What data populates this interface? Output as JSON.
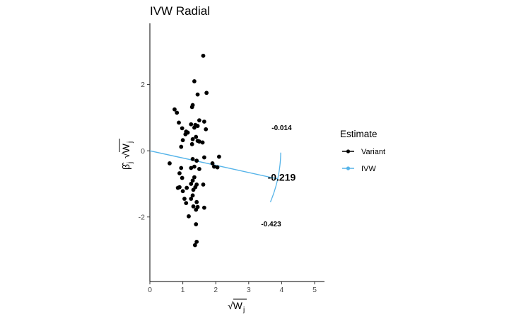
{
  "chart_data": {
    "type": "scatter",
    "title": "IVW Radial",
    "xlabel": "√Wj",
    "ylabel": "β̂j √Wj",
    "xlim": [
      0,
      5.3
    ],
    "ylim": [
      -3.95,
      3.85
    ],
    "x_ticks": [
      0,
      1,
      2,
      3,
      4,
      5
    ],
    "y_ticks": [
      -2,
      0,
      2
    ],
    "grid": false,
    "legend": {
      "title": "Estimate",
      "position": "right",
      "entries": [
        {
          "label": "Variant",
          "color": "#000000"
        },
        {
          "label": "IVW",
          "color": "#56B4E9"
        }
      ]
    },
    "series": [
      {
        "name": "Variant",
        "color": "#000000",
        "points": [
          [
            1.62,
            2.87
          ],
          [
            1.35,
            2.1
          ],
          [
            1.72,
            1.75
          ],
          [
            1.45,
            1.7
          ],
          [
            1.3,
            1.38
          ],
          [
            1.28,
            1.32
          ],
          [
            0.75,
            1.25
          ],
          [
            0.82,
            1.15
          ],
          [
            1.5,
            0.92
          ],
          [
            1.65,
            0.88
          ],
          [
            0.88,
            0.85
          ],
          [
            1.25,
            0.8
          ],
          [
            1.38,
            0.78
          ],
          [
            1.45,
            0.75
          ],
          [
            1.35,
            0.7
          ],
          [
            1.7,
            0.65
          ],
          [
            0.98,
            0.68
          ],
          [
            1.1,
            0.58
          ],
          [
            1.15,
            0.55
          ],
          [
            1.08,
            0.5
          ],
          [
            1.4,
            0.42
          ],
          [
            1.3,
            0.35
          ],
          [
            1.45,
            0.3
          ],
          [
            1.5,
            0.28
          ],
          [
            1.0,
            0.32
          ],
          [
            1.6,
            0.25
          ],
          [
            1.28,
            0.2
          ],
          [
            0.95,
            0.12
          ],
          [
            2.1,
            -0.18
          ],
          [
            1.3,
            -0.25
          ],
          [
            1.65,
            -0.2
          ],
          [
            1.42,
            -0.3
          ],
          [
            1.9,
            -0.38
          ],
          [
            0.6,
            -0.38
          ],
          [
            1.95,
            -0.48
          ],
          [
            2.05,
            -0.5
          ],
          [
            1.5,
            -0.55
          ],
          [
            1.35,
            -0.48
          ],
          [
            1.25,
            -0.52
          ],
          [
            0.95,
            -0.52
          ],
          [
            0.9,
            -0.68
          ],
          [
            0.98,
            -0.82
          ],
          [
            1.35,
            -0.8
          ],
          [
            1.3,
            -0.9
          ],
          [
            1.25,
            -1.0
          ],
          [
            1.42,
            -1.02
          ],
          [
            1.62,
            -1.02
          ],
          [
            1.38,
            -1.1
          ],
          [
            0.9,
            -1.1
          ],
          [
            0.85,
            -1.12
          ],
          [
            1.12,
            -1.12
          ],
          [
            1.32,
            -1.18
          ],
          [
            1.0,
            -1.22
          ],
          [
            1.3,
            -1.35
          ],
          [
            1.25,
            -1.45
          ],
          [
            1.05,
            -1.45
          ],
          [
            1.1,
            -1.58
          ],
          [
            1.42,
            -1.55
          ],
          [
            1.32,
            -1.68
          ],
          [
            1.45,
            -1.7
          ],
          [
            1.65,
            -1.72
          ],
          [
            1.4,
            -1.78
          ],
          [
            1.18,
            -1.98
          ],
          [
            1.4,
            -2.22
          ],
          [
            1.42,
            -2.75
          ],
          [
            1.37,
            -2.85
          ]
        ]
      },
      {
        "name": "IVW",
        "color": "#56B4E9",
        "type": "line",
        "intercept": 0,
        "slope": -0.219,
        "x_range": [
          0,
          3.88
        ]
      }
    ],
    "annotations": [
      {
        "text": "-0.014",
        "x": 4.0,
        "y": 0.62,
        "size": "small"
      },
      {
        "text": "-0.219",
        "x": 4.0,
        "y": -0.9,
        "size": "big"
      },
      {
        "text": "-0.423",
        "x": 3.68,
        "y": -2.28,
        "size": "small"
      }
    ]
  }
}
